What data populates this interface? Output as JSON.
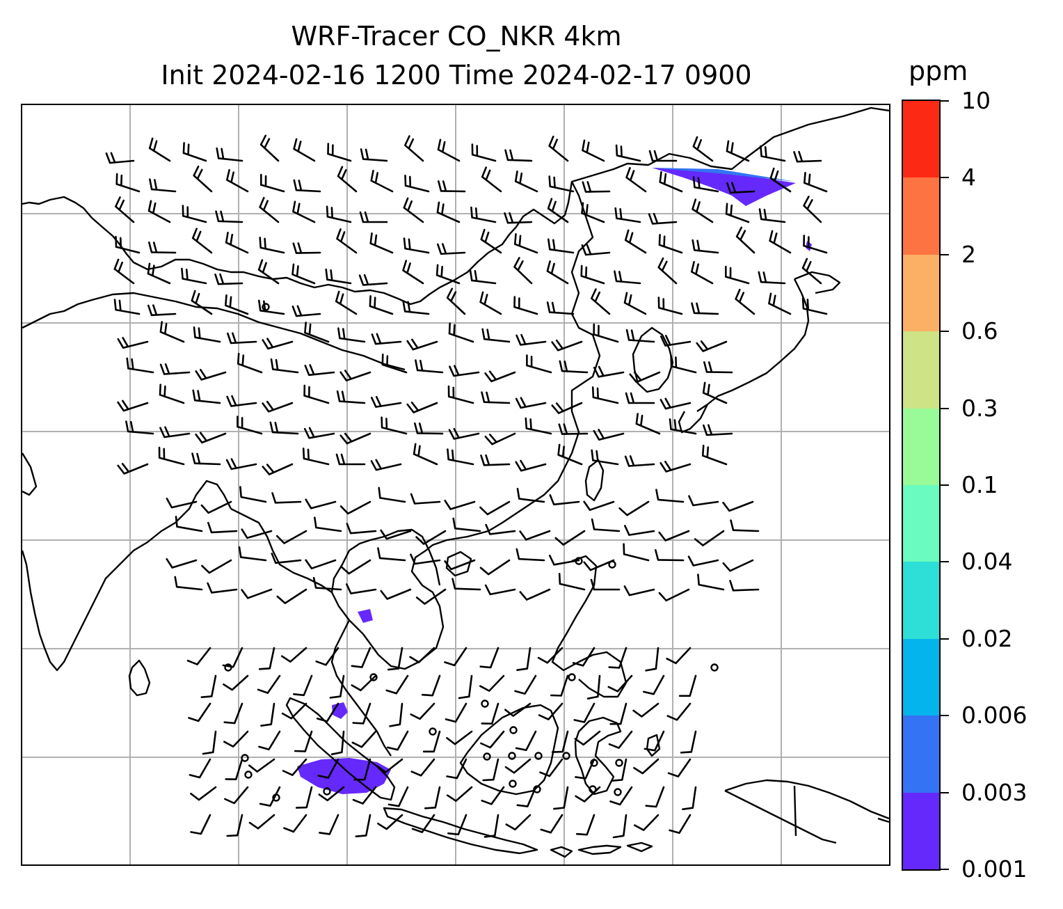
{
  "title": {
    "line1": "WRF-Tracer CO_NKR 4km",
    "line2": "Init 2024-02-16 1200 Time 2024-02-17 0900"
  },
  "colorbar": {
    "unit": "ppm",
    "levels": [
      "0.001",
      "0.003",
      "0.006",
      "0.02",
      "0.04",
      "0.1",
      "0.3",
      "0.6",
      "2",
      "4",
      "10"
    ],
    "colors": [
      "#6629fc",
      "#3474f4",
      "#04b4ec",
      "#2ddfd6",
      "#69fbbf",
      "#98fb98",
      "#cde385",
      "#fcb065",
      "#fd7442",
      "#fc2a15"
    ]
  },
  "map": {
    "gridlines": true,
    "barb_color": "#000000",
    "coast_color": "#000000",
    "plume_color": "#6629fc"
  }
}
